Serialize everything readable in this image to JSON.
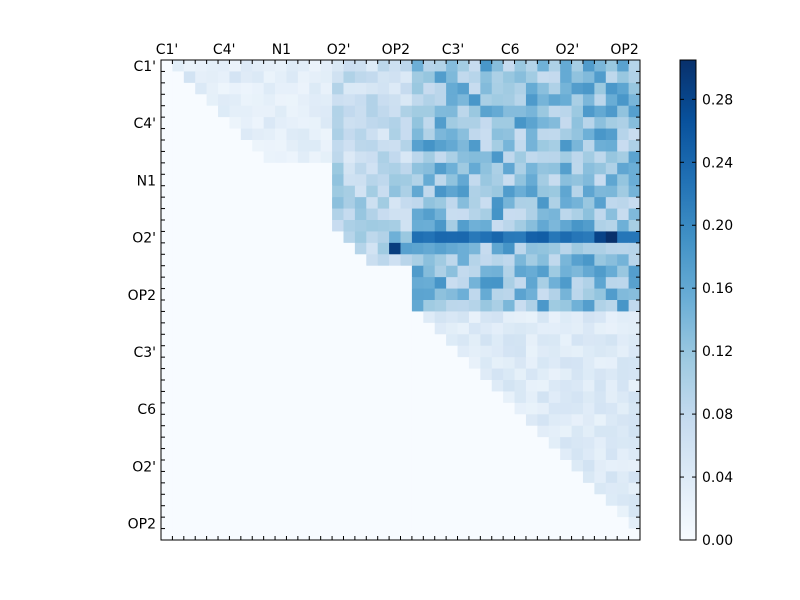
{
  "chart_data": {
    "type": "heatmap",
    "title": "",
    "xlabel": "",
    "ylabel": "",
    "colormap": "Blues",
    "colors": {
      "low": "#f7fbff",
      "high": "#08306b"
    },
    "x_tick_labels": [
      "C1'",
      "C4'",
      "N1",
      "O2'",
      "OP2",
      "C3'",
      "C6",
      "O2'",
      "OP2"
    ],
    "y_tick_labels": [
      "C1'",
      "C4'",
      "N1",
      "O2'",
      "OP2",
      "C3'",
      "C6",
      "O2'",
      "OP2"
    ],
    "grid_size": 42,
    "colorbar": {
      "range": [
        0.0,
        0.305
      ],
      "ticks": [
        0.0,
        0.04,
        0.08,
        0.12,
        0.16,
        0.2,
        0.24,
        0.28
      ],
      "tick_labels": [
        "0.00",
        "0.04",
        "0.08",
        "0.12",
        "0.16",
        "0.20",
        "0.24",
        "0.28"
      ]
    },
    "upper_triangle_only": true,
    "blocks": [
      {
        "rows": [
          0,
          9
        ],
        "cols": [
          0,
          15
        ],
        "base": 0.03
      },
      {
        "rows": [
          0,
          9
        ],
        "cols": [
          15,
          22
        ],
        "base": 0.07
      },
      {
        "rows": [
          0,
          22
        ],
        "cols": [
          22,
          42
        ],
        "base": 0.13
      },
      {
        "rows": [
          9,
          18
        ],
        "cols": [
          15,
          22
        ],
        "base": 0.09
      },
      {
        "rows": [
          22,
          42
        ],
        "cols": [
          22,
          42
        ],
        "base": 0.04
      }
    ],
    "strong_rows": [
      {
        "row": 15,
        "cols": [
          22,
          42
        ],
        "value": 0.24
      },
      {
        "row": 15,
        "cols": [
          38,
          40
        ],
        "value": 0.3
      }
    ],
    "strong_cells": [
      {
        "row": 16,
        "col": 20,
        "value": 0.29
      },
      {
        "row": 15,
        "col": 20,
        "value": 0.15
      },
      {
        "row": 16,
        "col": 21,
        "value": 0.17
      }
    ],
    "light_cells": [
      {
        "row": 1,
        "cols": [
          2,
          8
        ],
        "value": 0.04
      },
      {
        "row": 2,
        "cols": [
          4,
          8
        ],
        "value": 0.03
      },
      {
        "row": 5,
        "cols": [
          8,
          14
        ],
        "value": 0.03
      }
    ]
  }
}
